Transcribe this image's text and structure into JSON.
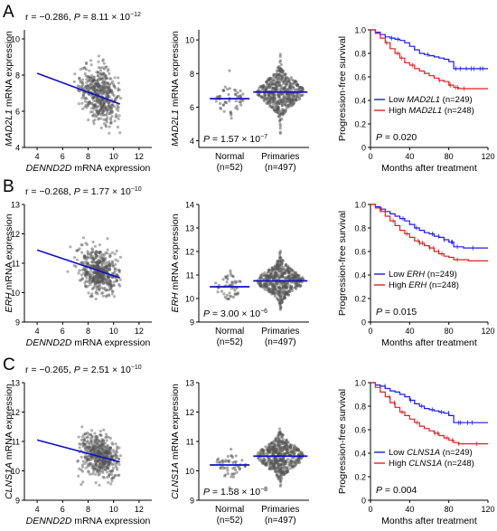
{
  "chart_data": [
    {
      "panel": "A",
      "type": "scatter",
      "stat_text": {
        "r": "r = −0.286, ",
        "p_label": "P",
        "p_value": " = 8.11 × 10",
        "p_exp": "−12"
      },
      "xlabel": {
        "gene": "DENND2D",
        "suffix": " mRNA expression"
      },
      "ylabel": {
        "gene": "MAD2L1",
        "suffix": " mRNA expression"
      },
      "xlim": [
        3,
        13
      ],
      "ylim": [
        4,
        10.5
      ],
      "x_ticks": [
        4,
        6,
        8,
        10,
        12
      ],
      "y_ticks": [
        4,
        6,
        8,
        10
      ],
      "regression": {
        "x": [
          4,
          10.5
        ],
        "y": [
          8.1,
          6.4
        ],
        "color": "#1010cc"
      },
      "points": {
        "n": 497,
        "x_mean": 8.9,
        "x_sd": 0.75,
        "y_mean": 6.85,
        "y_sd": 0.75,
        "slope": -0.26,
        "color": "#555555"
      }
    },
    {
      "panel": "A",
      "type": "scatter",
      "ylabel": {
        "gene": "MAD2L1",
        "suffix": " mRNA expression"
      },
      "ylim": [
        3.6,
        10.6
      ],
      "y_ticks": [
        4,
        6,
        8,
        10
      ],
      "categories": [
        {
          "name": "Normal",
          "n_label": "(n=52)",
          "n": 52,
          "median": 6.5,
          "sd": 0.55
        },
        {
          "name": "Primaries",
          "n_label": "(n=497)",
          "n": 497,
          "median": 6.9,
          "sd": 0.7
        }
      ],
      "p_text": {
        "label": "P",
        "value": " = 1.57 × 10",
        "exp": "−7"
      },
      "median_color": "#1010cc"
    },
    {
      "panel": "A",
      "type": "line",
      "ylabel": "Progression-free survival",
      "xlabel": "Months after treatment",
      "xlim": [
        0,
        120
      ],
      "ylim": [
        0,
        1.0
      ],
      "x_ticks": [
        0,
        40,
        80,
        120
      ],
      "y_ticks": [
        0,
        0.2,
        0.4,
        0.6,
        0.8,
        1.0
      ],
      "y_tick_labels": [
        "0",
        "0.2",
        "0.4",
        "0.6",
        "0.8",
        "1.0"
      ],
      "series": [
        {
          "name_prefix": "Low ",
          "gene": "MAD2L1",
          "name_suffix": " (n=249)",
          "color": "#1a1aff",
          "x": [
            0,
            5,
            10,
            15,
            20,
            25,
            30,
            35,
            40,
            45,
            50,
            55,
            60,
            65,
            70,
            75,
            80,
            85,
            95,
            120
          ],
          "y": [
            1.0,
            0.98,
            0.96,
            0.94,
            0.93,
            0.92,
            0.91,
            0.89,
            0.86,
            0.83,
            0.8,
            0.79,
            0.78,
            0.77,
            0.76,
            0.75,
            0.73,
            0.67,
            0.67,
            0.67
          ]
        },
        {
          "name_prefix": "High ",
          "gene": "MAD2L1",
          "name_suffix": " (n=248)",
          "color": "#e02020",
          "x": [
            0,
            5,
            10,
            15,
            20,
            25,
            30,
            35,
            40,
            45,
            50,
            55,
            60,
            65,
            70,
            75,
            80,
            85,
            90,
            100,
            120
          ],
          "y": [
            1.0,
            0.97,
            0.93,
            0.89,
            0.84,
            0.8,
            0.76,
            0.72,
            0.7,
            0.67,
            0.65,
            0.63,
            0.61,
            0.59,
            0.57,
            0.56,
            0.53,
            0.51,
            0.5,
            0.5,
            0.5
          ]
        }
      ],
      "p_text": {
        "label": "P",
        "value": " = 0.020"
      }
    },
    {
      "panel": "B",
      "type": "scatter",
      "stat_text": {
        "r": "r = −0.268, ",
        "p_label": "P",
        "p_value": " = 1.77 × 10",
        "p_exp": "−10"
      },
      "xlabel": {
        "gene": "DENND2D",
        "suffix": " mRNA expression"
      },
      "ylabel": {
        "gene": "ERH",
        "suffix": " mRNA expression"
      },
      "xlim": [
        3,
        13
      ],
      "ylim": [
        9,
        13
      ],
      "x_ticks": [
        4,
        6,
        8,
        10,
        12
      ],
      "y_ticks": [
        9,
        10,
        11,
        12,
        13
      ],
      "regression": {
        "x": [
          4,
          10.5
        ],
        "y": [
          11.45,
          10.5
        ],
        "color": "#1010cc"
      },
      "points": {
        "n": 497,
        "x_mean": 8.9,
        "x_sd": 0.75,
        "y_mean": 10.75,
        "y_sd": 0.4,
        "slope": -0.13,
        "color": "#555555"
      }
    },
    {
      "panel": "B",
      "type": "scatter",
      "ylabel": {
        "gene": "ERH",
        "suffix": " mRNA expression"
      },
      "ylim": [
        9,
        14
      ],
      "y_ticks": [
        9,
        10,
        11,
        12,
        13,
        14
      ],
      "categories": [
        {
          "name": "Normal",
          "n_label": "(n=52)",
          "n": 52,
          "median": 10.5,
          "sd": 0.28
        },
        {
          "name": "Primaries",
          "n_label": "(n=497)",
          "n": 497,
          "median": 10.75,
          "sd": 0.42
        }
      ],
      "p_text": {
        "label": "P",
        "value": " = 3.00 × 10",
        "exp": "−6"
      },
      "median_color": "#1010cc"
    },
    {
      "panel": "B",
      "type": "line",
      "ylabel": "Progression-free survival",
      "xlabel": "Months after treatment",
      "xlim": [
        0,
        120
      ],
      "ylim": [
        0,
        1.0
      ],
      "x_ticks": [
        0,
        40,
        80,
        120
      ],
      "y_ticks": [
        0,
        0.2,
        0.4,
        0.6,
        0.8,
        1.0
      ],
      "y_tick_labels": [
        "0",
        "0.2",
        "0.4",
        "0.6",
        "0.8",
        "1.0"
      ],
      "series": [
        {
          "name_prefix": "Low ",
          "gene": "ERH",
          "name_suffix": " (n=249)",
          "color": "#1a1aff",
          "x": [
            0,
            5,
            10,
            15,
            20,
            25,
            30,
            35,
            40,
            45,
            50,
            55,
            60,
            65,
            70,
            75,
            80,
            85,
            95,
            120
          ],
          "y": [
            1.0,
            0.98,
            0.96,
            0.94,
            0.92,
            0.9,
            0.88,
            0.86,
            0.83,
            0.8,
            0.78,
            0.76,
            0.75,
            0.73,
            0.72,
            0.7,
            0.68,
            0.64,
            0.63,
            0.63
          ]
        },
        {
          "name_prefix": "High ",
          "gene": "ERH",
          "name_suffix": " (n=248)",
          "color": "#e02020",
          "x": [
            0,
            5,
            10,
            15,
            20,
            25,
            30,
            35,
            40,
            45,
            50,
            55,
            60,
            65,
            70,
            75,
            80,
            85,
            90,
            100,
            120
          ],
          "y": [
            1.0,
            0.97,
            0.94,
            0.9,
            0.86,
            0.82,
            0.78,
            0.75,
            0.72,
            0.69,
            0.67,
            0.65,
            0.63,
            0.6,
            0.58,
            0.56,
            0.55,
            0.53,
            0.53,
            0.52,
            0.52
          ]
        }
      ],
      "p_text": {
        "label": "P",
        "value": " = 0.015"
      }
    },
    {
      "panel": "C",
      "type": "scatter",
      "stat_text": {
        "r": "r = −0.265, ",
        "p_label": "P",
        "p_value": " = 2.51 × 10",
        "p_exp": "−10"
      },
      "xlabel": {
        "gene": "DENND2D",
        "suffix": " mRNA expression"
      },
      "ylabel": {
        "gene": "CLNS1A",
        "suffix": " mRNA expression"
      },
      "xlim": [
        3,
        13
      ],
      "ylim": [
        9,
        13
      ],
      "x_ticks": [
        4,
        6,
        8,
        10,
        12
      ],
      "y_ticks": [
        9,
        10,
        11,
        12,
        13
      ],
      "regression": {
        "x": [
          4,
          10.5
        ],
        "y": [
          11.05,
          10.3
        ],
        "color": "#1010cc"
      },
      "points": {
        "n": 497,
        "x_mean": 8.9,
        "x_sd": 0.75,
        "y_mean": 10.5,
        "y_sd": 0.35,
        "slope": -0.11,
        "color": "#555555"
      }
    },
    {
      "panel": "C",
      "type": "scatter",
      "ylabel": {
        "gene": "CLNS1A",
        "suffix": " mRNA expression"
      },
      "ylim": [
        9,
        13
      ],
      "y_ticks": [
        9,
        10,
        11,
        12,
        13
      ],
      "categories": [
        {
          "name": "Normal",
          "n_label": "(n=52)",
          "n": 52,
          "median": 10.2,
          "sd": 0.25
        },
        {
          "name": "Primaries",
          "n_label": "(n=497)",
          "n": 497,
          "median": 10.5,
          "sd": 0.35
        }
      ],
      "p_text": {
        "label": "P",
        "value": " = 1.58 × 10",
        "exp": "−8"
      },
      "median_color": "#1010cc"
    },
    {
      "panel": "C",
      "type": "line",
      "ylabel": "Progression-free survival",
      "xlabel": "Months after treatment",
      "xlim": [
        0,
        120
      ],
      "ylim": [
        0,
        1.0
      ],
      "x_ticks": [
        0,
        40,
        80,
        120
      ],
      "y_ticks": [
        0,
        0.2,
        0.4,
        0.6,
        0.8,
        1.0
      ],
      "y_tick_labels": [
        "0",
        "0.2",
        "0.4",
        "0.6",
        "0.8",
        "1.0"
      ],
      "series": [
        {
          "name_prefix": "Low ",
          "gene": "CLNS1A",
          "name_suffix": " (n=249)",
          "color": "#1a1aff",
          "x": [
            0,
            5,
            10,
            15,
            20,
            25,
            30,
            35,
            40,
            45,
            50,
            55,
            60,
            65,
            70,
            75,
            80,
            85,
            95,
            120
          ],
          "y": [
            1.0,
            0.98,
            0.97,
            0.95,
            0.93,
            0.92,
            0.9,
            0.88,
            0.85,
            0.82,
            0.8,
            0.78,
            0.77,
            0.76,
            0.75,
            0.74,
            0.72,
            0.66,
            0.66,
            0.66
          ]
        },
        {
          "name_prefix": "High ",
          "gene": "CLNS1A",
          "name_suffix": " (n=248)",
          "color": "#e02020",
          "x": [
            0,
            5,
            10,
            15,
            20,
            25,
            30,
            35,
            40,
            45,
            50,
            55,
            60,
            65,
            70,
            75,
            80,
            85,
            90,
            100,
            120
          ],
          "y": [
            1.0,
            0.96,
            0.92,
            0.88,
            0.83,
            0.79,
            0.75,
            0.72,
            0.69,
            0.66,
            0.63,
            0.61,
            0.59,
            0.57,
            0.55,
            0.53,
            0.51,
            0.49,
            0.48,
            0.48,
            0.48
          ]
        }
      ],
      "p_text": {
        "label": "P",
        "value": " = 0.004"
      }
    }
  ]
}
